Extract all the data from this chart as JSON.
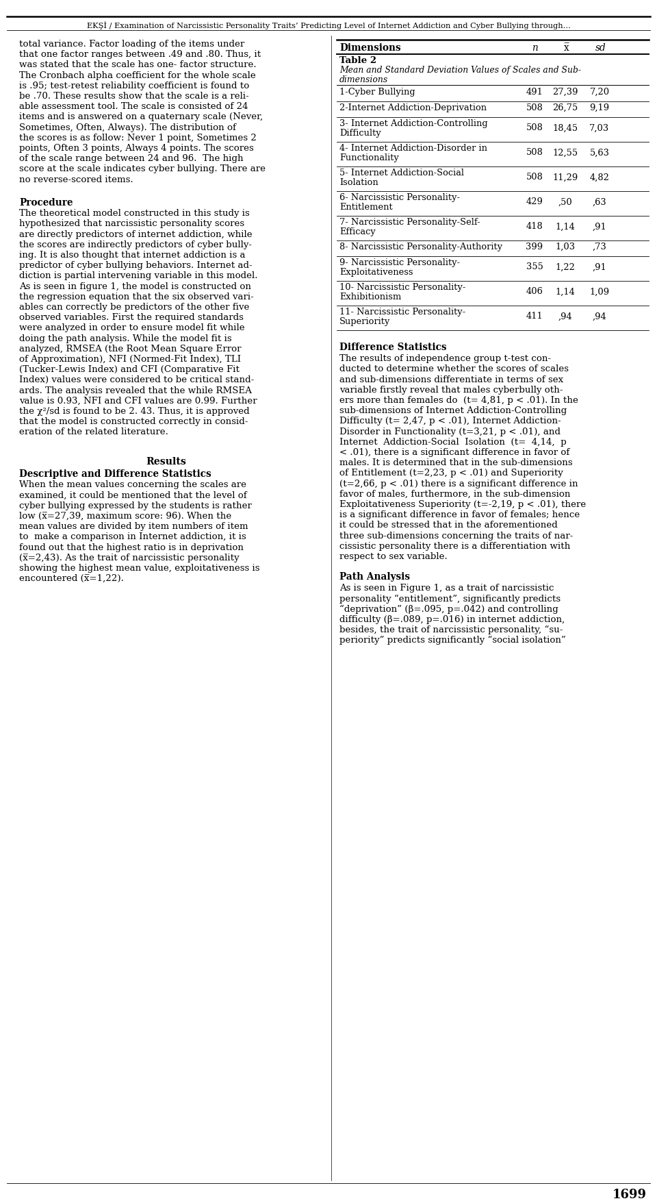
{
  "header": "EKŞİ / Examination of Narcissistic Personality Traits’ Predicting Level of Internet Addiction and Cyber Bullying through...",
  "page_number": "1699",
  "left_column_para1": [
    "total variance. Factor loading of the items under",
    "that one factor ranges between .49 and .80. Thus, it",
    "was stated that the scale has one- factor structure.",
    "The Cronbach alpha coefficient for the whole scale",
    "is .95; test-retest reliability coefficient is found to",
    "be .70. These results show that the scale is a reli-",
    "able assessment tool. The scale is consisted of 24",
    "items and is answered on a quaternary scale (Never,",
    "Sometimes, Often, Always). The distribution of",
    "the scores is as follow: Never 1 point, Sometimes 2",
    "points, Often 3 points, Always 4 points. The scores",
    "of the scale range between 24 and 96.  The high",
    "score at the scale indicates cyber bullying. There are",
    "no reverse-scored items."
  ],
  "procedure_heading": "Procedure",
  "procedure_text": [
    "The theoretical model constructed in this study is",
    "hypothesized that narcissistic personality scores",
    "are directly predictors of internet addiction, while",
    "the scores are indirectly predictors of cyber bully-",
    "ing. It is also thought that internet addiction is a",
    "predictor of cyber bullying behaviors. Internet ad-",
    "diction is partial intervening variable in this model.",
    "As is seen in figure 1, the model is constructed on",
    "the regression equation that the six observed vari-",
    "ables can correctly be predictors of the other five",
    "observed variables. First the required standards",
    "were analyzed in order to ensure model fit while",
    "doing the path analysis. While the model fit is",
    "analyzed, RMSEA (the Root Mean Square Error",
    "of Approximation), NFI (Normed-Fit Index), TLI",
    "(Tucker-Lewis Index) and CFI (Comparative Fit",
    "Index) values were considered to be critical stand-",
    "ards. The analysis revealed that the while RMSEA",
    "value is 0.93, NFI and CFI values are 0.99. Further",
    "the χ²/sd is found to be 2. 43. Thus, it is approved",
    "that the model is constructed correctly in consid-",
    "eration of the related literature."
  ],
  "results_heading": "Results",
  "descriptive_heading": "Descriptive and Difference Statistics",
  "descriptive_text": [
    "When the mean values concerning the scales are",
    "examined, it could be mentioned that the level of",
    "cyber bullying expressed by the students is rather",
    "low (x̅=27,39, maximum score: 96). When the",
    "mean values are divided by item numbers of item",
    "to  make a comparison in Internet addiction, it is",
    "found out that the highest ratio is in deprivation",
    "(x̅=2,43). As the trait of narcissistic personality",
    "showing the highest mean value, exploitativeness is",
    "encountered (x̅=1,22)."
  ],
  "table_header_dimensions": "Dimensions",
  "table_header_n": "n",
  "table_header_xbar": "x̅",
  "table_header_sd": "sd",
  "table2_title": "Table 2",
  "table2_subtitle_line1": "Mean and Standard Deviation Values of Scales and Sub-",
  "table2_subtitle_line2": "dimensions",
  "table_rows": [
    {
      "dimension": "1-Cyber Bullying",
      "n": "491",
      "xbar": "27,39",
      "sd": "7,20",
      "lines": 1
    },
    {
      "dimension": "2-Internet Addiction-Deprivation",
      "n": "508",
      "xbar": "26,75",
      "sd": "9,19",
      "lines": 1
    },
    {
      "dimension_l1": "3- Internet Addiction-Controlling",
      "dimension_l2": "Difficulty",
      "n": "508",
      "xbar": "18,45",
      "sd": "7,03",
      "lines": 2
    },
    {
      "dimension_l1": "4- Internet Addiction-Disorder in",
      "dimension_l2": "Functionality",
      "n": "508",
      "xbar": "12,55",
      "sd": "5,63",
      "lines": 2
    },
    {
      "dimension_l1": "5- Internet Addiction-Social",
      "dimension_l2": "Isolation",
      "n": "508",
      "xbar": "11,29",
      "sd": "4,82",
      "lines": 2
    },
    {
      "dimension_l1": "6- Narcissistic Personality-",
      "dimension_l2": "Entitlement",
      "n": "429",
      "xbar": ",50",
      "sd": ",63",
      "lines": 2
    },
    {
      "dimension_l1": "7- Narcissistic Personality-Self-",
      "dimension_l2": "Efficacy",
      "n": "418",
      "xbar": "1,14",
      "sd": ",91",
      "lines": 2
    },
    {
      "dimension": "8- Narcissistic Personality-Authority",
      "n": "399",
      "xbar": "1,03",
      "sd": ",73",
      "lines": 1
    },
    {
      "dimension_l1": "9- Narcissistic Personality-",
      "dimension_l2": "Exploitativeness",
      "n": "355",
      "xbar": "1,22",
      "sd": ",91",
      "lines": 2
    },
    {
      "dimension_l1": "10- Narcissistic Personality-",
      "dimension_l2": "Exhibitionism",
      "n": "406",
      "xbar": "1,14",
      "sd": "1,09",
      "lines": 2
    },
    {
      "dimension_l1": "11- Narcissistic Personality-",
      "dimension_l2": "Superiority",
      "n": "411",
      "xbar": ",94",
      "sd": ",94",
      "lines": 2
    }
  ],
  "difference_heading": "Difference Statistics",
  "difference_text": [
    "The results of independence group t-test con-",
    "ducted to determine whether the scores of scales",
    "and sub-dimensions differentiate in terms of sex",
    "variable firstly reveal that males cyberbully oth-",
    "ers more than females do  (t= 4,81, p < .01). In the",
    "sub-dimensions of Internet Addiction-Controlling",
    "Difficulty (t= 2,47, p < .01), Internet Addiction-",
    "Disorder in Functionality (t=3,21, p < .01), and",
    "Internet  Addiction-Social  Isolation  (t=  4,14,  p",
    "< .01), there is a significant difference in favor of",
    "males. It is determined that in the sub-dimensions",
    "of Entitlement (t=2,23, p < .01) and Superiority",
    "(t=2,66, p < .01) there is a significant difference in",
    "favor of males, furthermore, in the sub-dimension",
    "Exploitativeness Superiority (t=-2,19, p < .01), there",
    "is a significant difference in favor of females; hence",
    "it could be stressed that in the aforementioned",
    "three sub-dimensions concerning the traits of nar-",
    "cissistic personality there is a differentiation with",
    "respect to sex variable."
  ],
  "path_analysis_heading": "Path Analysis",
  "path_analysis_text": [
    "As is seen in Figure 1, as a trait of narcissistic",
    "personality “entitlement”, significantly predicts",
    "“deprivation” (β=.095, p=.042) and controlling",
    "difficulty (β=.089, p=.016) in internet addiction,",
    "besides, the trait of narcissistic personality, “su-",
    "periority” predicts significantly “social isolation”"
  ]
}
